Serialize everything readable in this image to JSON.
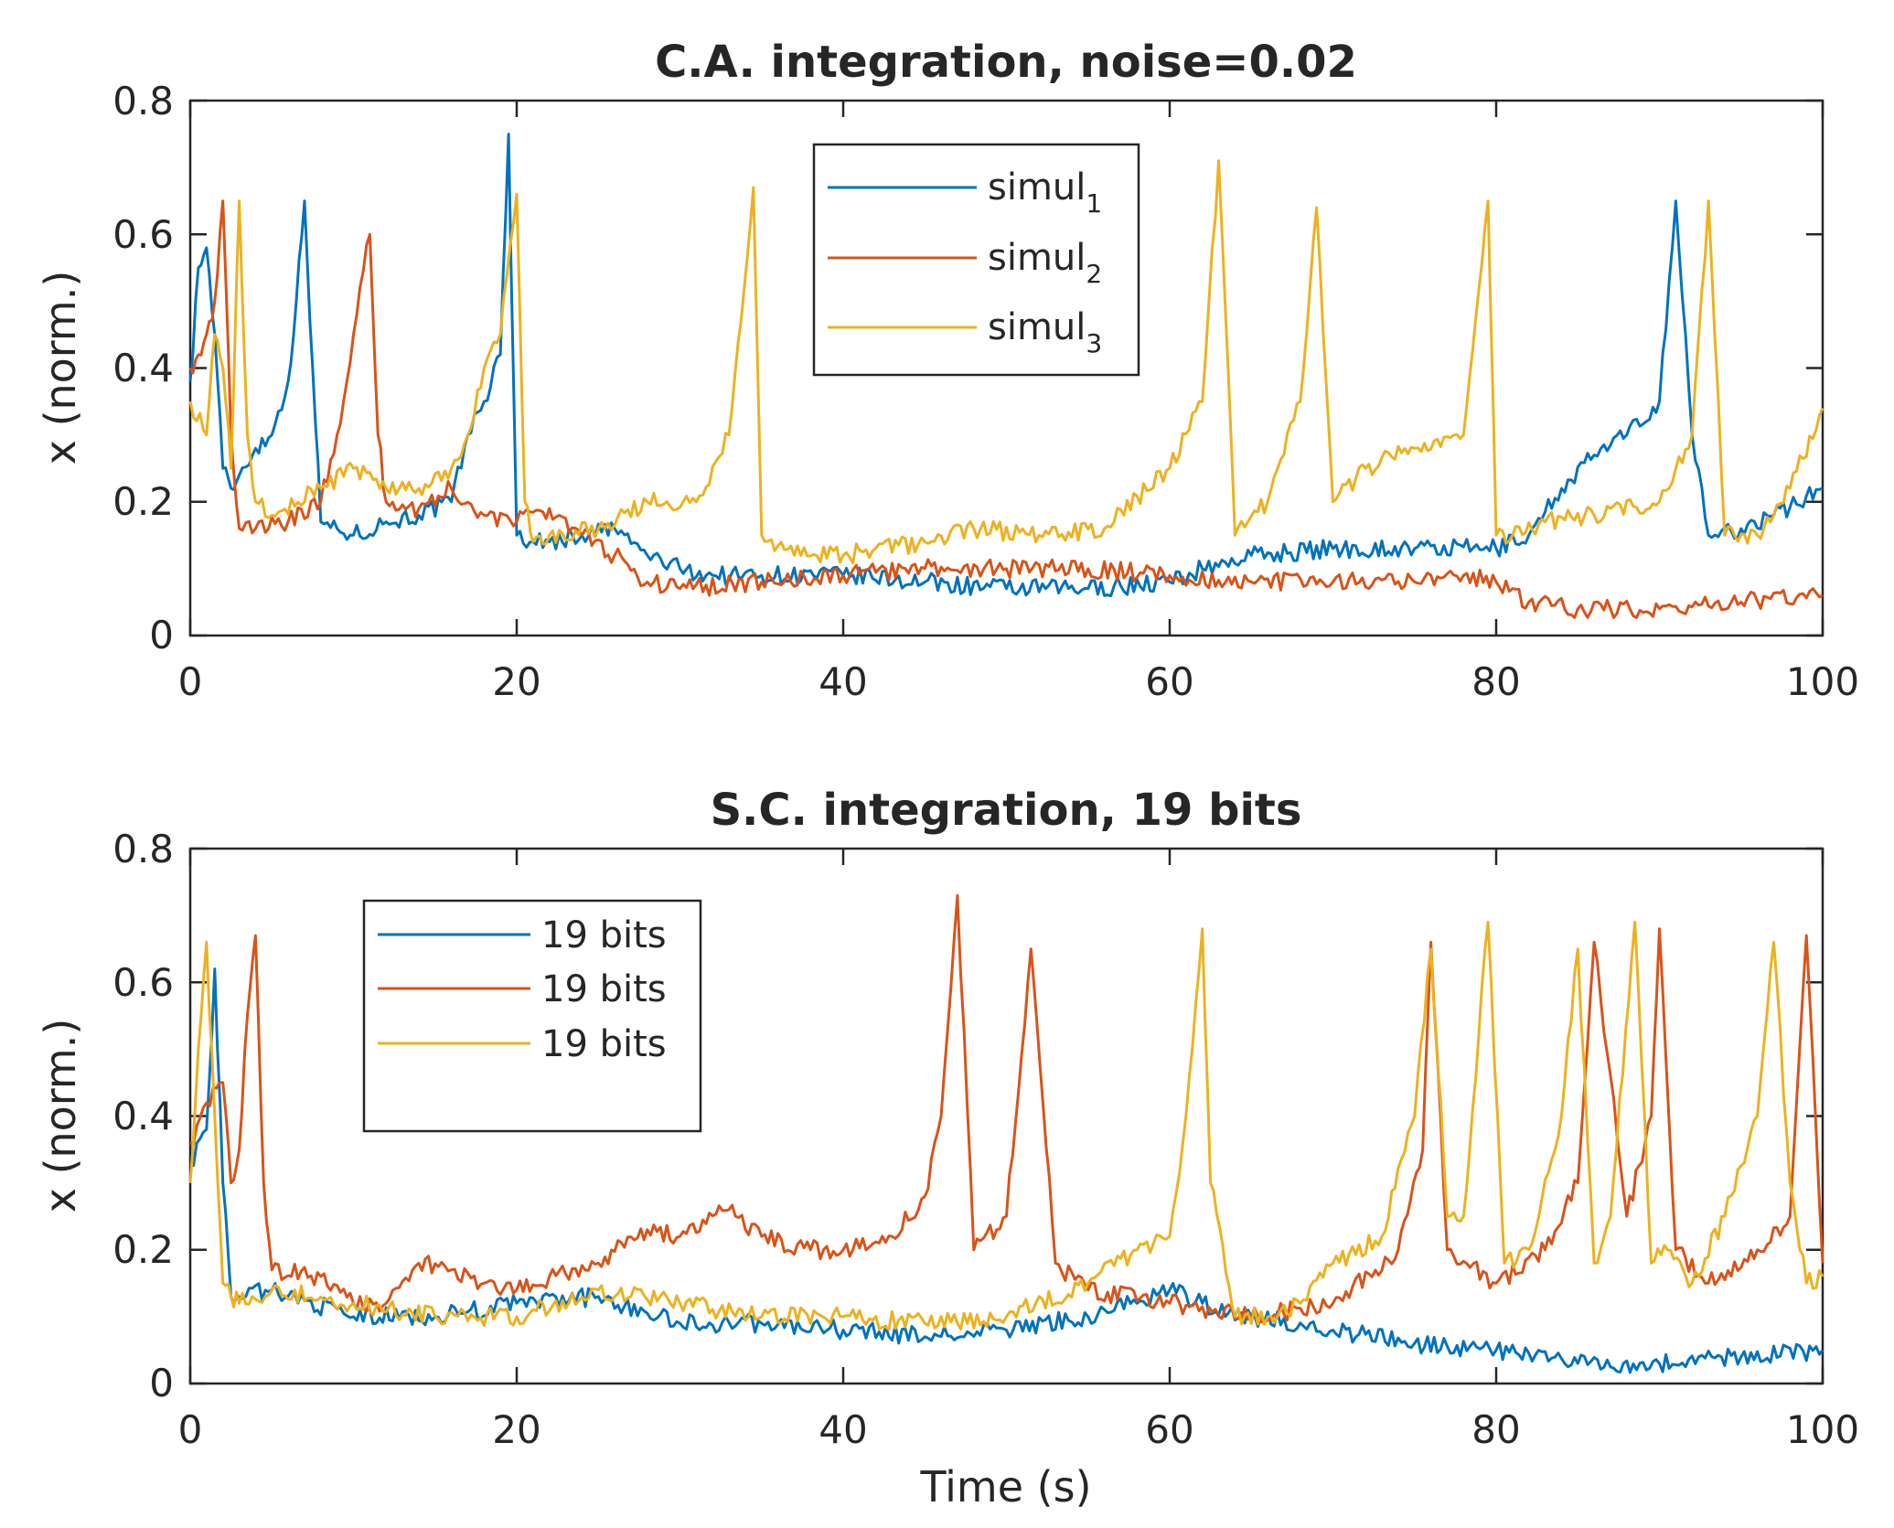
{
  "chart_data": [
    {
      "type": "line",
      "title": "C.A. integration, noise=0.02",
      "xlabel": "",
      "ylabel": "x (norm.)",
      "xlim": [
        0,
        100
      ],
      "ylim": [
        0,
        0.8
      ],
      "xticks": [
        "0",
        "20",
        "40",
        "60",
        "80",
        "100"
      ],
      "yticks": [
        "0",
        "0.2",
        "0.4",
        "0.6",
        "0.8"
      ],
      "legend_position": "top-center",
      "series": [
        {
          "name": "simul",
          "subscript": "1",
          "color": "#0072BD",
          "x": [
            0,
            0.5,
            1,
            1.5,
            2,
            2.5,
            3,
            4,
            5,
            6,
            6.5,
            7,
            7.5,
            8,
            9,
            10,
            12,
            14,
            16,
            17,
            18,
            19,
            19.5,
            20,
            21,
            22,
            24,
            26,
            28,
            30,
            32,
            35,
            40,
            45,
            50,
            55,
            60,
            62,
            65,
            70,
            75,
            80,
            82,
            84,
            86,
            88,
            90,
            91,
            92,
            93,
            95,
            97,
            100
          ],
          "values": [
            0.38,
            0.55,
            0.58,
            0.45,
            0.25,
            0.22,
            0.24,
            0.28,
            0.3,
            0.38,
            0.5,
            0.65,
            0.4,
            0.17,
            0.16,
            0.15,
            0.17,
            0.18,
            0.2,
            0.3,
            0.35,
            0.42,
            0.75,
            0.15,
            0.14,
            0.14,
            0.15,
            0.16,
            0.12,
            0.1,
            0.09,
            0.09,
            0.09,
            0.08,
            0.07,
            0.07,
            0.08,
            0.1,
            0.12,
            0.13,
            0.13,
            0.13,
            0.15,
            0.22,
            0.27,
            0.3,
            0.35,
            0.65,
            0.3,
            0.15,
            0.16,
            0.18,
            0.22
          ]
        },
        {
          "name": "simul",
          "subscript": "2",
          "color": "#D95319",
          "x": [
            0,
            0.5,
            1,
            1.5,
            2,
            2.5,
            3,
            4,
            6,
            8,
            9,
            10,
            11,
            11.5,
            12,
            14,
            16,
            18,
            20,
            22,
            24,
            26,
            28,
            30,
            35,
            40,
            45,
            50,
            55,
            60,
            65,
            70,
            75,
            78,
            80,
            82,
            85,
            90,
            95,
            100
          ],
          "values": [
            0.4,
            0.42,
            0.45,
            0.5,
            0.65,
            0.3,
            0.16,
            0.16,
            0.17,
            0.2,
            0.3,
            0.45,
            0.6,
            0.3,
            0.2,
            0.19,
            0.22,
            0.18,
            0.17,
            0.19,
            0.15,
            0.12,
            0.08,
            0.07,
            0.08,
            0.09,
            0.1,
            0.1,
            0.1,
            0.09,
            0.08,
            0.08,
            0.08,
            0.09,
            0.08,
            0.05,
            0.04,
            0.04,
            0.05,
            0.06
          ]
        },
        {
          "name": "simul",
          "subscript": "3",
          "color": "#EDB120",
          "x": [
            0,
            1,
            1.5,
            2,
            2.5,
            3,
            3.5,
            4,
            5,
            8,
            10,
            12,
            14,
            16,
            17,
            18,
            19,
            20,
            20.5,
            21,
            22,
            25,
            28,
            31,
            33,
            34.5,
            35,
            37,
            40,
            45,
            48,
            52,
            56,
            60,
            62,
            63,
            64,
            66,
            68,
            69,
            70,
            72,
            75,
            78,
            79.5,
            80,
            81,
            83,
            86,
            90,
            91,
            92,
            93,
            94,
            96,
            98,
            100
          ],
          "values": [
            0.35,
            0.3,
            0.45,
            0.4,
            0.25,
            0.65,
            0.3,
            0.2,
            0.18,
            0.22,
            0.25,
            0.22,
            0.22,
            0.25,
            0.3,
            0.4,
            0.45,
            0.66,
            0.2,
            0.14,
            0.15,
            0.16,
            0.2,
            0.2,
            0.3,
            0.67,
            0.15,
            0.12,
            0.12,
            0.14,
            0.16,
            0.15,
            0.16,
            0.25,
            0.35,
            0.71,
            0.15,
            0.2,
            0.35,
            0.64,
            0.2,
            0.25,
            0.28,
            0.3,
            0.65,
            0.15,
            0.15,
            0.17,
            0.18,
            0.2,
            0.25,
            0.3,
            0.65,
            0.15,
            0.15,
            0.22,
            0.34
          ]
        }
      ]
    },
    {
      "type": "line",
      "title": "S.C. integration, 19 bits",
      "xlabel": "Time (s)",
      "ylabel": "x (norm.)",
      "xlim": [
        0,
        100
      ],
      "ylim": [
        0,
        0.8
      ],
      "xticks": [
        "0",
        "20",
        "40",
        "60",
        "80",
        "100"
      ],
      "yticks": [
        "0",
        "0.2",
        "0.4",
        "0.6",
        "0.8"
      ],
      "legend_position": "top-left",
      "series": [
        {
          "name": "19 bits",
          "color": "#0072BD",
          "x": [
            0,
            1,
            1.5,
            2,
            2.5,
            3,
            5,
            10,
            15,
            20,
            25,
            30,
            35,
            40,
            45,
            50,
            55,
            60,
            62,
            65,
            70,
            75,
            80,
            85,
            90,
            95,
            100
          ],
          "values": [
            0.33,
            0.38,
            0.62,
            0.3,
            0.13,
            0.13,
            0.14,
            0.1,
            0.1,
            0.12,
            0.13,
            0.09,
            0.09,
            0.08,
            0.07,
            0.08,
            0.1,
            0.14,
            0.12,
            0.1,
            0.08,
            0.06,
            0.05,
            0.03,
            0.03,
            0.04,
            0.05
          ]
        },
        {
          "name": "19 bits",
          "color": "#D95319",
          "x": [
            0,
            1,
            2,
            2.5,
            3,
            3.5,
            4,
            4.5,
            5,
            8,
            10,
            12,
            14,
            16,
            18,
            20,
            25,
            28,
            30,
            33,
            35,
            38,
            40,
            43,
            45,
            46,
            47,
            48,
            50,
            51.5,
            53,
            55,
            60,
            65,
            70,
            74,
            75.5,
            76,
            77,
            80,
            83,
            85,
            86,
            88,
            89.5,
            90,
            91,
            93,
            96,
            98,
            99,
            100
          ],
          "values": [
            0.36,
            0.42,
            0.45,
            0.3,
            0.35,
            0.55,
            0.67,
            0.3,
            0.17,
            0.16,
            0.12,
            0.12,
            0.18,
            0.17,
            0.15,
            0.14,
            0.18,
            0.23,
            0.22,
            0.26,
            0.22,
            0.2,
            0.2,
            0.22,
            0.28,
            0.4,
            0.73,
            0.2,
            0.25,
            0.65,
            0.18,
            0.14,
            0.12,
            0.1,
            0.12,
            0.2,
            0.35,
            0.66,
            0.2,
            0.15,
            0.2,
            0.3,
            0.66,
            0.25,
            0.4,
            0.68,
            0.2,
            0.15,
            0.2,
            0.25,
            0.67,
            0.18
          ]
        },
        {
          "name": "19 bits",
          "color": "#EDB120",
          "x": [
            0,
            0.5,
            1,
            1.5,
            2,
            2.5,
            3,
            5,
            10,
            15,
            20,
            25,
            30,
            35,
            40,
            45,
            50,
            55,
            58,
            60,
            61,
            62,
            62.5,
            64,
            66,
            68,
            70,
            73,
            75,
            76,
            77,
            78,
            79.5,
            80.5,
            82,
            84,
            85,
            86,
            87,
            88.5,
            89.5,
            90.5,
            92,
            94,
            96,
            97,
            98,
            99,
            100
          ],
          "values": [
            0.3,
            0.5,
            0.66,
            0.4,
            0.15,
            0.13,
            0.12,
            0.14,
            0.12,
            0.1,
            0.1,
            0.14,
            0.12,
            0.1,
            0.1,
            0.09,
            0.1,
            0.15,
            0.2,
            0.22,
            0.4,
            0.68,
            0.3,
            0.1,
            0.1,
            0.12,
            0.18,
            0.22,
            0.4,
            0.65,
            0.25,
            0.25,
            0.69,
            0.18,
            0.2,
            0.4,
            0.65,
            0.18,
            0.25,
            0.69,
            0.18,
            0.2,
            0.15,
            0.25,
            0.4,
            0.66,
            0.3,
            0.15,
            0.16
          ]
        }
      ]
    }
  ]
}
